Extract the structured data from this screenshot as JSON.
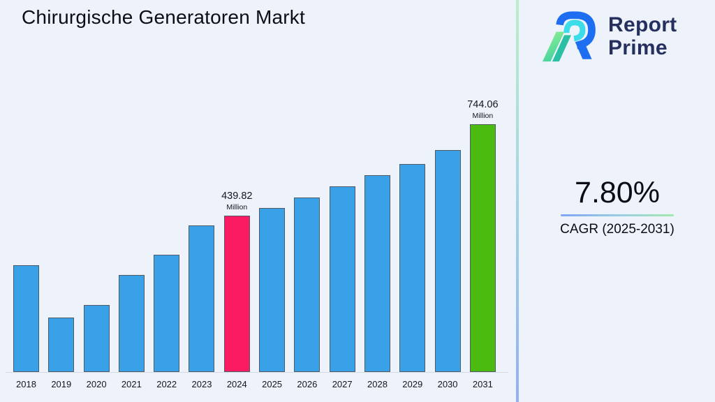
{
  "title": "Chirurgische Generatoren Markt",
  "brand": {
    "name_line1": "Report",
    "name_line2": "Prime",
    "text_color": "#25305e"
  },
  "cagr_panel": {
    "value": "7.80%",
    "label": "CAGR (2025-2031)"
  },
  "chart_data": {
    "type": "bar",
    "title": "Chirurgische Generatoren Markt",
    "unit": "Million",
    "categories": [
      "2018",
      "2019",
      "2020",
      "2021",
      "2022",
      "2023",
      "2024",
      "2025",
      "2026",
      "2027",
      "2028",
      "2029",
      "2030",
      "2031"
    ],
    "values": [
      275,
      101,
      143,
      242,
      310,
      407,
      439.82,
      465,
      500,
      537,
      575,
      612,
      658,
      744.06
    ],
    "labeled_values": {
      "2024": "439.82",
      "2031": "744.06"
    },
    "annotated_categories": [
      "2024",
      "2031"
    ],
    "xlabel": "",
    "ylabel": "",
    "grid": false,
    "legend": false,
    "value_axis_visible": false,
    "colors": {
      "bar_default": "#38a1e8",
      "bar_highlight_2024": "#fa1b63",
      "bar_highlight_2031": "#4cbb0f",
      "bar_border": "#4e5a66"
    }
  }
}
